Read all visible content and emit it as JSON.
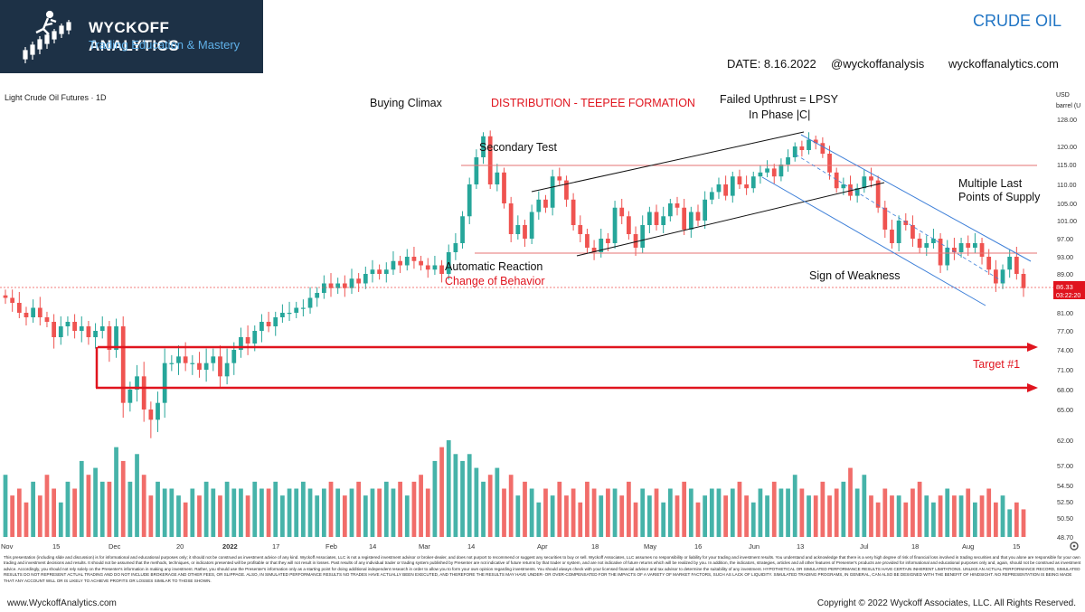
{
  "brand": {
    "name": "WYCKOFF ANALYTICS",
    "tagline": "Trading Education & Mastery"
  },
  "header": {
    "asset": "CRUDE OIL",
    "date": "DATE: 8.16.2022",
    "handle": "@wyckoffanalysis",
    "site": "wyckoffanalytics.com"
  },
  "colors": {
    "up": "#26a69a",
    "down": "#ef5350",
    "annotation_red": "#e0141e",
    "channel_blue": "#3d7fd8",
    "brand_navy": "#1d3146"
  },
  "chart_data": {
    "type": "candlestick",
    "symbol": "Light Crude Oil Futures · 1D",
    "price_unit": [
      "USD",
      "barrel (U"
    ],
    "x_ticks": [
      "Nov",
      "15",
      "Dec",
      "20",
      "2022",
      "17",
      "Feb",
      "14",
      "Mar",
      "14",
      "Apr",
      "18",
      "May",
      "16",
      "Jun",
      "13",
      "Jul",
      "18",
      "Aug",
      "15"
    ],
    "y_ticks": [
      "128.00",
      "120.00",
      "115.00",
      "110.00",
      "105.00",
      "101.00",
      "97.00",
      "93.00",
      "89.00",
      "85.00",
      "81.00",
      "77.00",
      "74.00",
      "71.00",
      "68.00",
      "65.00",
      "62.00",
      "57.00",
      "54.50",
      "52.50",
      "50.50",
      "48.70"
    ],
    "ylim": [
      48,
      130
    ],
    "last_price": "86.33",
    "last_time": "03:22:20",
    "annotations": {
      "title": "DISTRIBUTION - TEEPEE FORMATION",
      "bc": "Buying Climax",
      "st": "Secondary Test",
      "ar": "Automatic Reaction",
      "coc": "Change of Behavior",
      "ut1": "Failed Upthrust = LPSY",
      "ut2": "In Phase |C|",
      "lps1": "Multiple Last",
      "lps2": "Points of Supply",
      "sow": "Sign of Weakness",
      "target": "Target #1"
    },
    "levels": {
      "resistance": 115,
      "support": 93,
      "target_upper": 75,
      "target_lower": 68
    },
    "closes": [
      84,
      83,
      81,
      80,
      82,
      80,
      79,
      76,
      78,
      79,
      77,
      78,
      76,
      77,
      78,
      74,
      78,
      66,
      68,
      70,
      65,
      64,
      66,
      72,
      72,
      73,
      72,
      72,
      71,
      72,
      73,
      70,
      72,
      74,
      76,
      75,
      77,
      79,
      78,
      80,
      81,
      81,
      82,
      82,
      84,
      85,
      87,
      86,
      87,
      86,
      88,
      87,
      89,
      90,
      89,
      90,
      92,
      91,
      93,
      92,
      91,
      90,
      91,
      89,
      94,
      96,
      102,
      110,
      117,
      123,
      110,
      113,
      105,
      98,
      100,
      97,
      103,
      106,
      104,
      112,
      111,
      106,
      100,
      98,
      95,
      94,
      97,
      96,
      104,
      102,
      98,
      95,
      100,
      103,
      100,
      102,
      105,
      104,
      99,
      103,
      101,
      106,
      108,
      110,
      107,
      112,
      110,
      109,
      112,
      113,
      114,
      112,
      115,
      117,
      120,
      119,
      122,
      121,
      118,
      113,
      109,
      110,
      107,
      109,
      112,
      111,
      104,
      99,
      96,
      101,
      100,
      97,
      95,
      96,
      97,
      91,
      95,
      94,
      96,
      95,
      96,
      93,
      90,
      87,
      90,
      93,
      89,
      86
    ],
    "volume": [
      57,
      54,
      55,
      53,
      56,
      54,
      57,
      55,
      53,
      56,
      55,
      59,
      57,
      58,
      56,
      56,
      61,
      59,
      56,
      60,
      57,
      54,
      56,
      55,
      55,
      54,
      53,
      55,
      54,
      56,
      55,
      54,
      56,
      55,
      55,
      54,
      56,
      55,
      55,
      56,
      54,
      55,
      55,
      56,
      55,
      54,
      55,
      56,
      55,
      54,
      55,
      56,
      54,
      55,
      55,
      56,
      55,
      56,
      54,
      56,
      57,
      55,
      59,
      61,
      62,
      60,
      59,
      60,
      58,
      56,
      57,
      58,
      55,
      57,
      54,
      56,
      55,
      53,
      55,
      54,
      56,
      54,
      55,
      53,
      56,
      55,
      54,
      55,
      55,
      54,
      56,
      53,
      55,
      54,
      55,
      53,
      55,
      54,
      56,
      55,
      53,
      54,
      55,
      55,
      54,
      55,
      56,
      54,
      53,
      55,
      54,
      56,
      55,
      55,
      57,
      55,
      54,
      54,
      56,
      54,
      55,
      56,
      58,
      55,
      57,
      54,
      53,
      55,
      54,
      54,
      53,
      55,
      56,
      54,
      53,
      54,
      55,
      54,
      54,
      55,
      53,
      54,
      55,
      53,
      54,
      52,
      53,
      52
    ]
  },
  "disclaimer": "This presentation (including slide and discussion) is for informational and educational purposes only; it should not be construed as investment advice of any kind. Wyckoff Associates, LLC is not a registered investment advisor or broker-dealer, and does not purport to recommend or suggest any securities to buy or sell. Wyckoff Associates, LLC assumes no responsibility or liability for your trading and investment results. You understand and acknowledge that there is a very high degree of risk of financial loss involved in trading securities and that you alone are responsible for your own trading and investment decisions and results. It should not be assumed that the methods, techniques, or indicators presented will be profitable or that they will not result in losses. Past results of any individual trader or trading system published by Presenter are not indicative of future returns by that trader or system, and are not indicative of future returns which will be realized by you. In addition, the indicators, strategies, articles and all other features of Presenter's products are provided for informational and educational purposes only and, again, should not be construed as investment advice. Accordingly, you should not rely solely on the Presenter's information in making any investment. Rather, you should use the Presenter's information only as a starting point for doing additional independent research in order to allow you to form your own opinion regarding investments. You should always check with your licensed financial advisor and tax advisor to determine the suitability of any investment. HYPOTHETICAL OR SIMULATED PERFORMANCE RESULTS HAVE CERTAIN INHERENT LIMITATIONS. UNLIKE AN ACTUAL PERFORMANCE RECORD, SIMULATED RESULTS DO NOT REPRESENT ACTUAL TRADING AND DO NOT INCLUDE BROKERAGE AND OTHER FEES, OR SLIPPAGE. ALSO, IN SIMULATED PERFORMANCE RESULTS NO TRADES HAVE ACTUALLY BEEN EXECUTED, AND THEREFORE THE RESULTS MAY HAVE UNDER- OR OVER-COMPENSATED FOR THE IMPACTS OF A VARIETY OF MARKET FACTORS, SUCH AS LACK OF LIQUIDITY. SIMULATED TRADING PROGRAMS, IN GENERAL, CAN ALSO BE DESIGNED WITH THE BENEFIT OF HINDSIGHT. NO REPRESENTATION IS BEING MADE THAT ANY ACCOUNT WILL OR IS LIKELY TO ACHIEVE PROFITS OR LOSSES SIMILAR TO THOSE SHOWN.",
  "footer": {
    "left": "www.WyckoffAnalytics.com",
    "right": "Copyright © 2022 Wyckoff Associates, LLC. All Rights Reserved."
  }
}
